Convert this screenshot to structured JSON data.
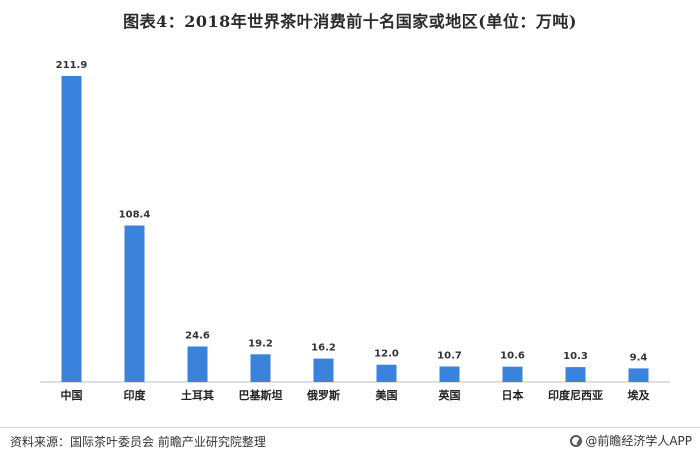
{
  "title": "图表4：2018年世界茶叶消费前十名国家或地区(单位：万吨)",
  "source": "资料来源：国际茶叶委员会 前瞻产业研究院整理",
  "brand": "@前瞻经济学人APP",
  "colors": {
    "bar": "#3b82dc",
    "axis": "#bfbfbf"
  },
  "chart_data": {
    "type": "bar",
    "title": "图表4：2018年世界茶叶消费前十名国家或地区(单位：万吨)",
    "categories": [
      "中国",
      "印度",
      "土耳其",
      "巴基斯坦",
      "俄罗斯",
      "美国",
      "英国",
      "日本",
      "印度尼西亚",
      "埃及"
    ],
    "values": [
      211.9,
      108.4,
      24.6,
      19.2,
      16.2,
      12.0,
      10.7,
      10.6,
      10.3,
      9.4
    ],
    "value_labels": [
      "211.9",
      "108.4",
      "24.6",
      "19.2",
      "16.2",
      "12.0",
      "10.7",
      "10.6",
      "10.3",
      "9.4"
    ],
    "ylim": [
      0,
      211.9
    ],
    "grid": false,
    "legend": "none"
  }
}
